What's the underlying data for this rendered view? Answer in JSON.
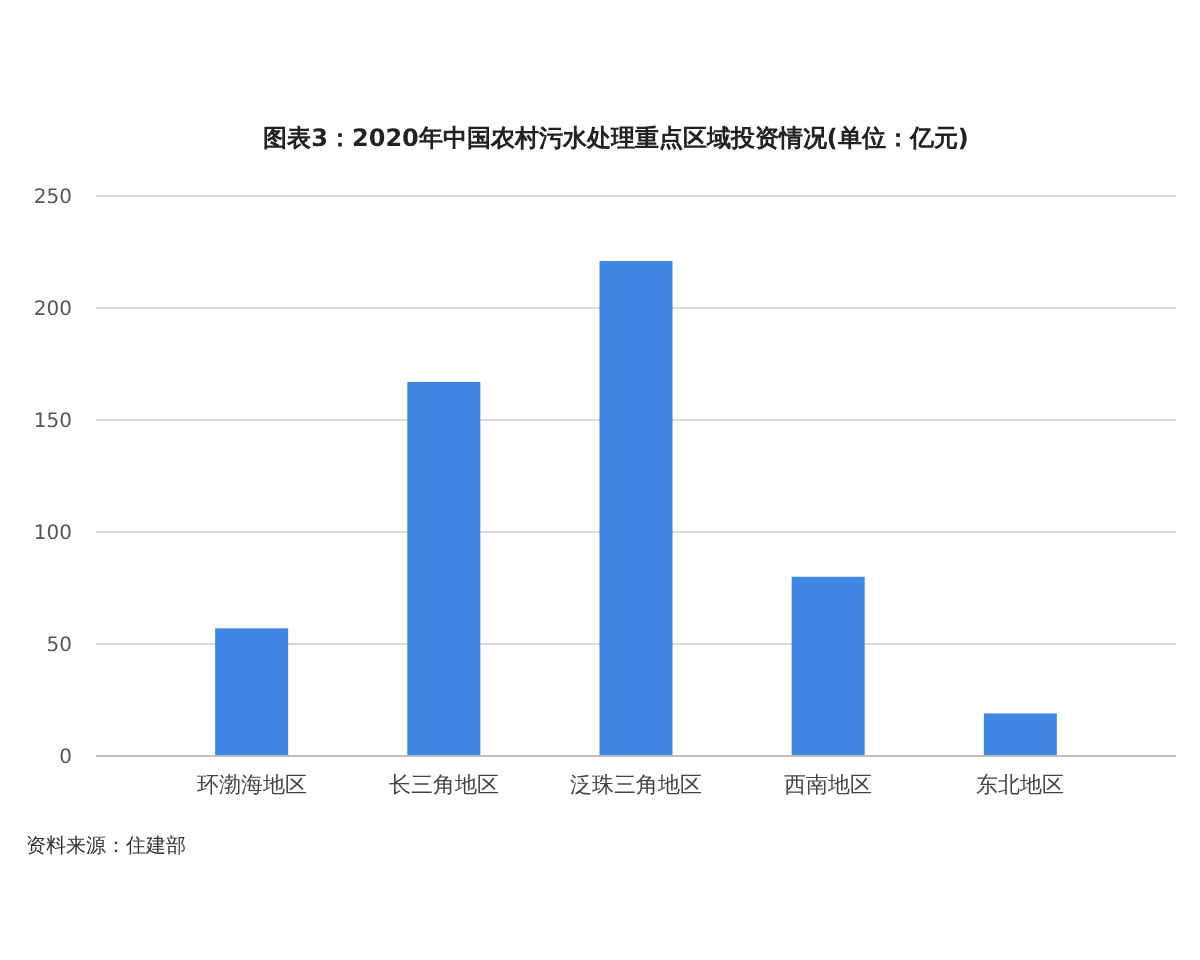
{
  "chart_data": {
    "type": "bar",
    "title": "图表3：2020年中国农村污水处理重点区域投资情况(单位：亿元)",
    "categories": [
      "环渤海地区",
      "长三角地区",
      "泛珠三角地区",
      "西南地区",
      "东北地区"
    ],
    "values": [
      57,
      167,
      221,
      80,
      19
    ],
    "color": "#3f87e0",
    "ylim": [
      0,
      250
    ],
    "yticks": [
      0,
      50,
      100,
      150,
      200,
      250
    ],
    "grid": "y",
    "annotations": [
      "资料来源：住建部"
    ]
  }
}
